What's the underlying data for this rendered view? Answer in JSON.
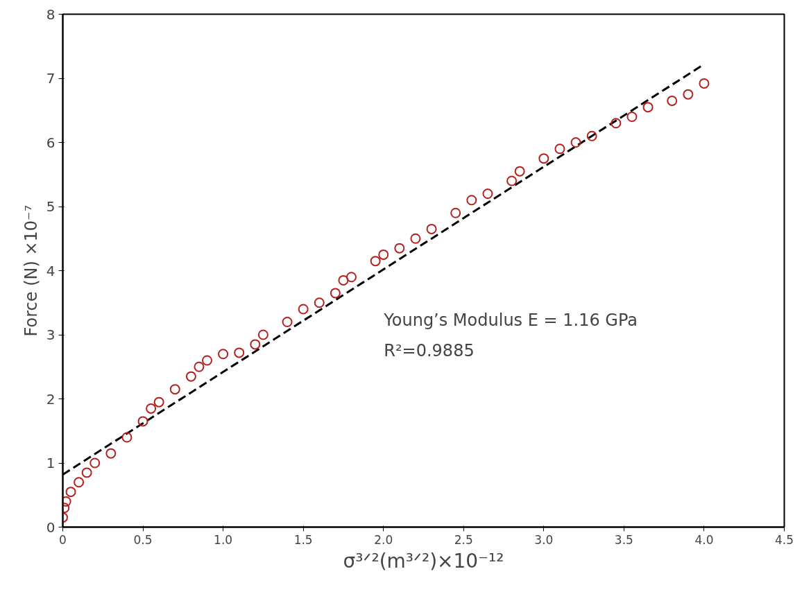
{
  "chart_data": {
    "type": "scatter",
    "xlabel": "σ³ᐟ²(m³ᐟ²)×10⁻¹²",
    "ylabel": "Force (N) ×10⁻⁷",
    "xlim": [
      0,
      4.5
    ],
    "ylim": [
      0,
      8
    ],
    "xticks": [
      0,
      {
        "value": 0.5,
        "label": "0.5"
      },
      {
        "value": 1,
        "label": "1.0"
      },
      {
        "value": 1.5,
        "label": "1.5"
      },
      {
        "value": 2,
        "label": "2.0"
      },
      {
        "value": 2.5,
        "label": "2.5"
      },
      {
        "value": 3,
        "label": "3.0"
      },
      {
        "value": 3.5,
        "label": "3.5"
      },
      {
        "value": 4,
        "label": "4.0"
      },
      {
        "value": 4.5,
        "label": "4.5"
      }
    ],
    "yticks": [
      0,
      1,
      2,
      3,
      4,
      5,
      6,
      7,
      8
    ],
    "grid": false,
    "marker": "circle",
    "series": [
      {
        "color": "#b5201e",
        "x": [
          0,
          0.01,
          0.02,
          0.05,
          0.1,
          0.15,
          0.2,
          0.3,
          0.4,
          0.5,
          0.55,
          0.6,
          0.7,
          0.8,
          0.85,
          0.9,
          1.0,
          1.1,
          1.2,
          1.25,
          1.4,
          1.5,
          1.6,
          1.7,
          1.75,
          1.8,
          1.95,
          2.0,
          2.1,
          2.2,
          2.3,
          2.45,
          2.55,
          2.65,
          2.8,
          2.85,
          3.0,
          3.1,
          3.2,
          3.3,
          3.45,
          3.55,
          3.65,
          3.8,
          3.9,
          4.0
        ],
        "values": [
          0.15,
          0.3,
          0.4,
          0.55,
          0.7,
          0.85,
          1.0,
          1.15,
          1.4,
          1.65,
          1.85,
          1.95,
          2.15,
          2.35,
          2.5,
          2.6,
          2.7,
          2.72,
          2.85,
          3.0,
          3.2,
          3.4,
          3.5,
          3.65,
          3.85,
          3.9,
          4.15,
          4.25,
          4.35,
          4.5,
          4.65,
          4.9,
          5.1,
          5.2,
          5.4,
          5.55,
          5.75,
          5.9,
          6.0,
          6.1,
          6.3,
          6.4,
          6.55,
          6.65,
          6.75,
          6.92
        ]
      },
      {
        "type": "line",
        "color": "#000000",
        "line_style": "dashed",
        "marker": "none",
        "x": [
          0,
          4.0
        ],
        "values": [
          0.82,
          7.22
        ]
      }
    ],
    "annotations": [
      "Young’s Modulus E = 1.16 GPa",
      "R²=0.9885"
    ]
  }
}
